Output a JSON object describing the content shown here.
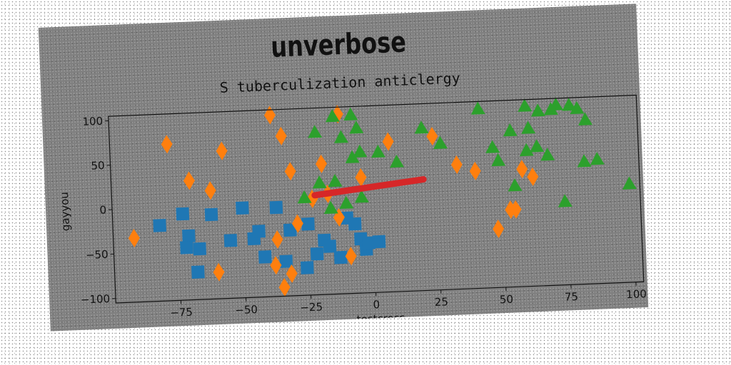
{
  "header": {
    "title": "unverbose"
  },
  "chart_data": {
    "type": "scatter",
    "title": "S tuberculization anticlergy",
    "xlabel": "testcross",
    "ylabel": "gayyou",
    "xlim": [
      -100,
      103
    ],
    "ylim": [
      -105,
      105
    ],
    "xticks": [
      -75,
      -50,
      -25,
      0,
      25,
      50,
      75,
      100
    ],
    "yticks": [
      -100,
      -50,
      0,
      50,
      100
    ],
    "xtick_labels": [
      "−75",
      "−50",
      "−25",
      "0",
      "25",
      "50",
      "75",
      "100"
    ],
    "ytick_labels": [
      "−100",
      "−50",
      "0",
      "50",
      "100"
    ],
    "grid": false,
    "legend": "none",
    "series": [
      {
        "marker": "square",
        "color": "#1f77b4",
        "points": [
          [
            -82,
            -20
          ],
          [
            -73,
            -8
          ],
          [
            -71,
            -33
          ],
          [
            -72,
            -46
          ],
          [
            -67,
            -48
          ],
          [
            -68,
            -74
          ],
          [
            -62,
            -10
          ],
          [
            -55,
            -40
          ],
          [
            -50,
            -4
          ],
          [
            -46,
            -39
          ],
          [
            -44,
            -31
          ],
          [
            -42,
            -60
          ],
          [
            -37,
            -5
          ],
          [
            -34,
            -66
          ],
          [
            -32,
            -31
          ],
          [
            -26,
            -74
          ],
          [
            -22,
            -59
          ],
          [
            -19,
            -44
          ],
          [
            -17,
            -51
          ],
          [
            -13,
            -64
          ],
          [
            -10,
            -20
          ],
          [
            -7,
            -27
          ],
          [
            -5,
            -44
          ],
          [
            -3,
            -56
          ],
          [
            -2,
            -49
          ],
          [
            2,
            -48
          ],
          [
            -25,
            -25
          ]
        ]
      },
      {
        "marker": "diamond",
        "color": "#ff7f0e",
        "points": [
          [
            -92,
            -33
          ],
          [
            -78,
            71
          ],
          [
            -70,
            29
          ],
          [
            -62,
            17
          ],
          [
            -57,
            61
          ],
          [
            -60,
            -75
          ],
          [
            -38,
            99
          ],
          [
            -34,
            75
          ],
          [
            -31,
            35
          ],
          [
            -29,
            -24
          ],
          [
            -37,
            -41
          ],
          [
            -38,
            -70
          ],
          [
            -32,
            -80
          ],
          [
            -35,
            -95
          ],
          [
            -23,
            3
          ],
          [
            -19,
            42
          ],
          [
            -17,
            8
          ],
          [
            -12,
            97
          ],
          [
            -13,
            -19
          ],
          [
            -9,
            -63
          ],
          [
            -4,
            25
          ],
          [
            7,
            64
          ],
          [
            24,
            68
          ],
          [
            33,
            35
          ],
          [
            40,
            27
          ],
          [
            58,
            27
          ],
          [
            62,
            18
          ],
          [
            53,
            -18
          ],
          [
            48,
            -39
          ],
          [
            55,
            -18
          ]
        ]
      },
      {
        "marker": "triangle",
        "color": "#2ca02c",
        "points": [
          [
            -14,
            95
          ],
          [
            -7,
            96
          ],
          [
            -21,
            78
          ],
          [
            -11,
            71
          ],
          [
            -5,
            81
          ],
          [
            -7,
            48
          ],
          [
            -4,
            54
          ],
          [
            3,
            53
          ],
          [
            10,
            41
          ],
          [
            20,
            78
          ],
          [
            -20,
            21
          ],
          [
            -14,
            22
          ],
          [
            -16,
            -8
          ],
          [
            -10,
            -3
          ],
          [
            -4,
            3
          ],
          [
            -26,
            5
          ],
          [
            27,
            60
          ],
          [
            42,
            97
          ],
          [
            47,
            53
          ],
          [
            54,
            71
          ],
          [
            49,
            38
          ],
          [
            60,
            98
          ],
          [
            65,
            92
          ],
          [
            70,
            93
          ],
          [
            72,
            98
          ],
          [
            77,
            97
          ],
          [
            80,
            93
          ],
          [
            83,
            80
          ],
          [
            61,
            73
          ],
          [
            60,
            48
          ],
          [
            64,
            52
          ],
          [
            68,
            42
          ],
          [
            74,
            -11
          ],
          [
            82,
            33
          ],
          [
            87,
            35
          ],
          [
            99,
            6
          ],
          [
            55,
            9
          ]
        ]
      },
      {
        "marker": "line",
        "color": "#d62728",
        "points": [
          [
            -22,
            7
          ],
          [
            20,
            20
          ]
        ]
      }
    ]
  }
}
